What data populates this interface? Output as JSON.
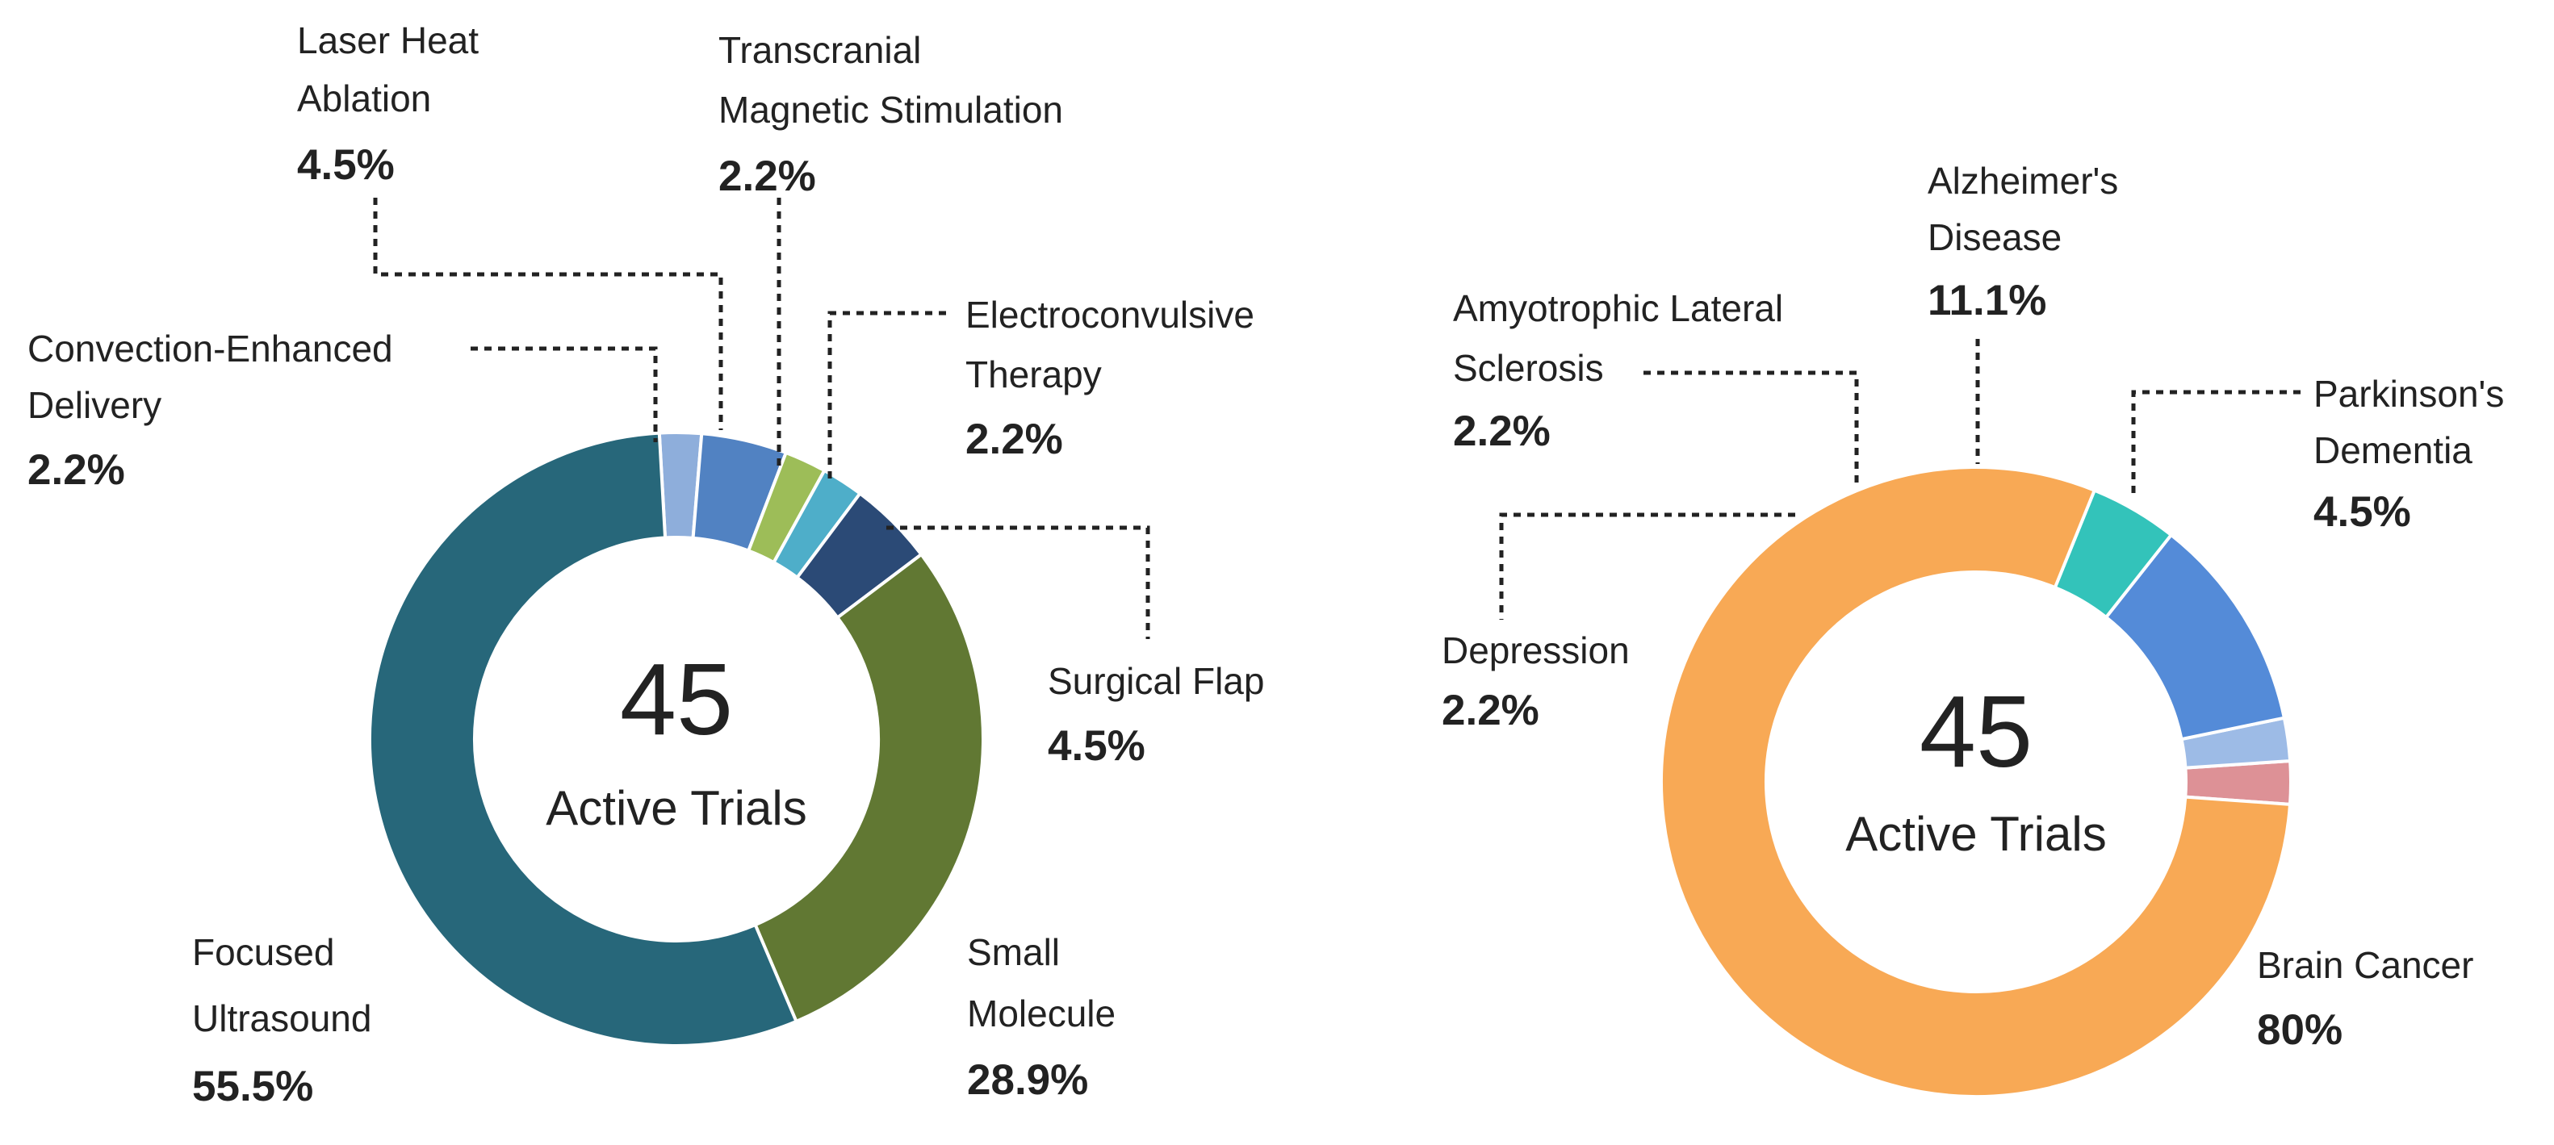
{
  "chart_data": [
    {
      "type": "pie",
      "variant": "donut",
      "center": {
        "value": "45",
        "label": "Active Trials"
      },
      "slices": [
        {
          "name": "Convection-Enhanced Delivery",
          "lines": [
            "Convection-Enhanced",
            "Delivery"
          ],
          "value": 2.2,
          "label": "2.2%",
          "color": "#8eaedb"
        },
        {
          "name": "Laser Heat Ablation",
          "lines": [
            "Laser Heat",
            "Ablation"
          ],
          "value": 4.5,
          "label": "4.5%",
          "color": "#5182c2"
        },
        {
          "name": "Transcranial Magnetic Stimulation",
          "lines": [
            "Transcranial",
            "Magnetic Stimulation"
          ],
          "value": 2.2,
          "label": "2.2%",
          "color": "#9dbd58"
        },
        {
          "name": "Electroconvulsive Therapy",
          "lines": [
            "Electroconvulsive",
            "Therapy"
          ],
          "value": 2.2,
          "label": "2.2%",
          "color": "#4eaec9"
        },
        {
          "name": "Surgical Flap",
          "lines": [
            "Surgical Flap"
          ],
          "value": 4.5,
          "label": "4.5%",
          "color": "#2b4a76"
        },
        {
          "name": "Small Molecule",
          "lines": [
            "Small",
            "Molecule"
          ],
          "value": 28.9,
          "label": "28.9%",
          "color": "#617833"
        },
        {
          "name": "Focused Ultrasound",
          "lines": [
            "Focused",
            "Ultrasound"
          ],
          "value": 55.5,
          "label": "55.5%",
          "color": "#27677a"
        }
      ]
    },
    {
      "type": "pie",
      "variant": "donut",
      "center": {
        "value": "45",
        "label": "Active Trials"
      },
      "slices": [
        {
          "name": "Depression",
          "lines": [
            "Depression"
          ],
          "value": 2.2,
          "label": "2.2%",
          "color": "#dd9196"
        },
        {
          "name": "Amyotrophic Lateral Sclerosis",
          "lines": [
            "Amyotrophic Lateral",
            "Sclerosis"
          ],
          "value": 2.2,
          "label": "2.2%",
          "color": "#9dbbe6"
        },
        {
          "name": "Alzheimer's Disease",
          "lines": [
            "Alzheimer's",
            "Disease"
          ],
          "value": 11.1,
          "label": "11.1%",
          "color": "#548bd8"
        },
        {
          "name": "Parkinson's Dementia",
          "lines": [
            "Parkinson's",
            "Dementia"
          ],
          "value": 4.5,
          "label": "4.5%",
          "color": "#33c3ba"
        },
        {
          "name": "Brain Cancer",
          "lines": [
            "Brain Cancer"
          ],
          "value": 80,
          "label": "80%",
          "color": "#f8a955"
        }
      ]
    }
  ]
}
